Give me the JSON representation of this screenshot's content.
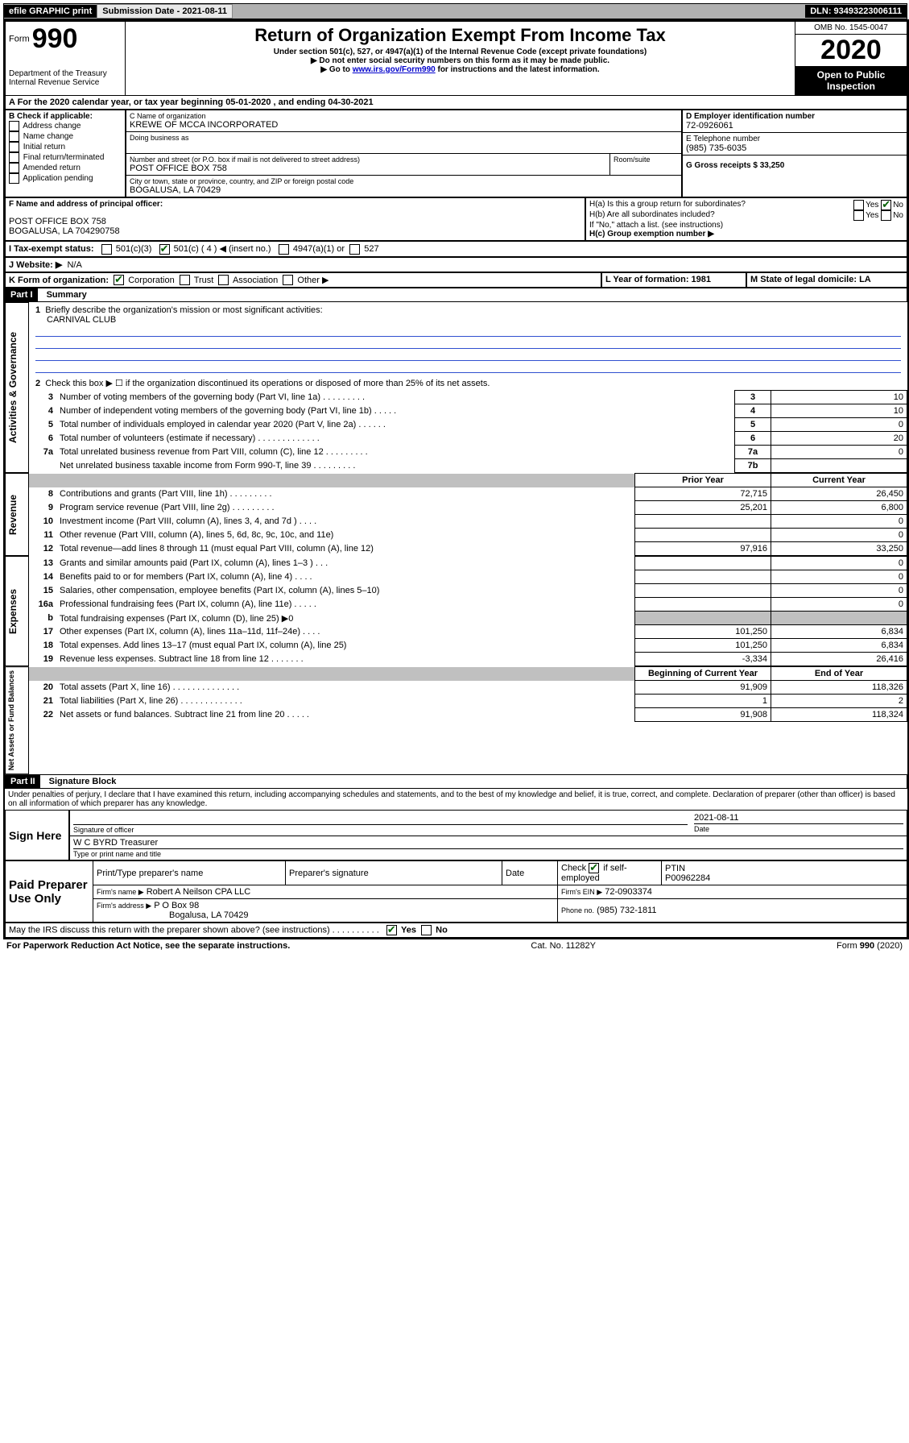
{
  "topbar": {
    "efile": "efile GRAPHIC print",
    "submission_label": "Submission Date - 2021-08-11",
    "dln_label": "DLN: 93493223006111"
  },
  "header": {
    "form_label": "Form",
    "form_number": "990",
    "dept1": "Department of the Treasury",
    "dept2": "Internal Revenue Service",
    "title": "Return of Organization Exempt From Income Tax",
    "subtitle": "Under section 501(c), 527, or 4947(a)(1) of the Internal Revenue Code (except private foundations)",
    "note1": "▶ Do not enter social security numbers on this form as it may be made public.",
    "note2_pre": "▶ Go to ",
    "note2_link": "www.irs.gov/Form990",
    "note2_post": " for instructions and the latest information.",
    "omb": "OMB No. 1545-0047",
    "year": "2020",
    "open": "Open to Public Inspection"
  },
  "periodA": "A For the 2020 calendar year, or tax year beginning 05-01-2020    , and ending 04-30-2021",
  "sectionB": {
    "label": "B Check if applicable:",
    "opts": [
      "Address change",
      "Name change",
      "Initial return",
      "Final return/terminated",
      "Amended return",
      "Application pending"
    ]
  },
  "sectionC": {
    "name_label": "C Name of organization",
    "name": "KREWE OF MCCA INCORPORATED",
    "dba_label": "Doing business as",
    "addr_label": "Number and street (or P.O. box if mail is not delivered to street address)",
    "room_label": "Room/suite",
    "addr": "POST OFFICE BOX 758",
    "city_label": "City or town, state or province, country, and ZIP or foreign postal code",
    "city": "BOGALUSA, LA  70429"
  },
  "sectionD": {
    "label": "D Employer identification number",
    "value": "72-0926061"
  },
  "sectionE": {
    "label": "E Telephone number",
    "value": "(985) 735-6035"
  },
  "sectionG": {
    "label": "G Gross receipts $ 33,250"
  },
  "sectionF": {
    "label": "F  Name and address of principal officer:",
    "line1": "POST OFFICE BOX 758",
    "line2": "BOGALUSA, LA  704290758"
  },
  "sectionH": {
    "a": "H(a)  Is this a group return for subordinates?",
    "b": "H(b)  Are all subordinates included?",
    "note": "If \"No,\" attach a list. (see instructions)",
    "c": "H(c)  Group exemption number ▶",
    "yes": "Yes",
    "no": "No"
  },
  "sectionI": {
    "label": "I   Tax-exempt status:",
    "o1": "501(c)(3)",
    "o2": "501(c) ( 4 ) ◀ (insert no.)",
    "o3": "4947(a)(1) or",
    "o4": "527"
  },
  "sectionJ": {
    "label": "J   Website: ▶",
    "value": "N/A"
  },
  "sectionK": {
    "label": "K Form of organization:",
    "o1": "Corporation",
    "o2": "Trust",
    "o3": "Association",
    "o4": "Other ▶"
  },
  "sectionL": {
    "label": "L Year of formation: 1981"
  },
  "sectionM": {
    "label": "M State of legal domicile: LA"
  },
  "part1": {
    "header": "Part I",
    "title": "Summary",
    "l1_label": "Briefly describe the organization's mission or most significant activities:",
    "l1_value": "CARNIVAL CLUB",
    "l2": "Check this box ▶ ☐  if the organization discontinued its operations or disposed of more than 25% of its net assets.",
    "lines_top": [
      {
        "n": "3",
        "t": "Number of voting members of the governing body (Part VI, line 1a)   .    .    .    .    .    .    .    .    .",
        "box": "3",
        "v": "10"
      },
      {
        "n": "4",
        "t": "Number of independent voting members of the governing body (Part VI, line 1b)   .    .    .    .    .",
        "box": "4",
        "v": "10"
      },
      {
        "n": "5",
        "t": "Total number of individuals employed in calendar year 2020 (Part V, line 2a)   .    .    .    .    .    .",
        "box": "5",
        "v": "0"
      },
      {
        "n": "6",
        "t": "Total number of volunteers (estimate if necessary)   .    .    .    .    .    .    .    .    .    .    .    .    .",
        "box": "6",
        "v": "20"
      },
      {
        "n": "7a",
        "t": "Total unrelated business revenue from Part VIII, column (C), line 12   .    .    .    .    .    .    .    .    .",
        "box": "7a",
        "v": "0"
      },
      {
        "n": "",
        "t": "Net unrelated business taxable income from Form 990-T, line 39   .    .    .    .    .    .    .    .    .",
        "box": "7b",
        "v": ""
      }
    ],
    "col_prior": "Prior Year",
    "col_current": "Current Year",
    "col_boy": "Beginning of Current Year",
    "col_eoy": "End of Year",
    "rev": [
      {
        "n": "8",
        "t": "Contributions and grants (Part VIII, line 1h)   .    .    .    .    .    .    .    .    .",
        "p": "72,715",
        "c": "26,450"
      },
      {
        "n": "9",
        "t": "Program service revenue (Part VIII, line 2g)   .    .    .    .    .    .    .    .    .",
        "p": "25,201",
        "c": "6,800"
      },
      {
        "n": "10",
        "t": "Investment income (Part VIII, column (A), lines 3, 4, and 7d )   .    .    .    .",
        "p": "",
        "c": "0"
      },
      {
        "n": "11",
        "t": "Other revenue (Part VIII, column (A), lines 5, 6d, 8c, 9c, 10c, and 11e)",
        "p": "",
        "c": "0"
      },
      {
        "n": "12",
        "t": "Total revenue—add lines 8 through 11 (must equal Part VIII, column (A), line 12)",
        "p": "97,916",
        "c": "33,250"
      }
    ],
    "exp": [
      {
        "n": "13",
        "t": "Grants and similar amounts paid (Part IX, column (A), lines 1–3 )   .    .    .",
        "p": "",
        "c": "0"
      },
      {
        "n": "14",
        "t": "Benefits paid to or for members (Part IX, column (A), line 4)   .    .    .    .",
        "p": "",
        "c": "0"
      },
      {
        "n": "15",
        "t": "Salaries, other compensation, employee benefits (Part IX, column (A), lines 5–10)",
        "p": "",
        "c": "0"
      },
      {
        "n": "16a",
        "t": "Professional fundraising fees (Part IX, column (A), line 11e)   .    .    .    .    .",
        "p": "",
        "c": "0"
      },
      {
        "n": "b",
        "t": "Total fundraising expenses (Part IX, column (D), line 25) ▶0",
        "p": "__shade__",
        "c": "__shade__"
      },
      {
        "n": "17",
        "t": "Other expenses (Part IX, column (A), lines 11a–11d, 11f–24e)   .    .    .    .",
        "p": "101,250",
        "c": "6,834"
      },
      {
        "n": "18",
        "t": "Total expenses. Add lines 13–17 (must equal Part IX, column (A), line 25)",
        "p": "101,250",
        "c": "6,834"
      },
      {
        "n": "19",
        "t": "Revenue less expenses. Subtract line 18 from line 12   .    .    .    .    .    .    .",
        "p": "-3,334",
        "c": "26,416"
      }
    ],
    "net": [
      {
        "n": "20",
        "t": "Total assets (Part X, line 16)   .    .    .    .    .    .    .    .    .    .    .    .    .    .",
        "p": "91,909",
        "c": "118,326"
      },
      {
        "n": "21",
        "t": "Total liabilities (Part X, line 26)   .    .    .    .    .    .    .    .    .    .    .    .    .",
        "p": "1",
        "c": "2"
      },
      {
        "n": "22",
        "t": "Net assets or fund balances. Subtract line 21 from line 20   .    .    .    .    .",
        "p": "91,908",
        "c": "118,324"
      }
    ],
    "side_gov": "Activities & Governance",
    "side_rev": "Revenue",
    "side_exp": "Expenses",
    "side_net": "Net Assets or Fund Balances"
  },
  "part2": {
    "header": "Part II",
    "title": "Signature Block",
    "perjury": "Under penalties of perjury, I declare that I have examined this return, including accompanying schedules and statements, and to the best of my knowledge and belief, it is true, correct, and complete. Declaration of preparer (other than officer) is based on all information of which preparer has any knowledge.",
    "sign_here": "Sign Here",
    "sig_officer": "Signature of officer",
    "sig_date": "2021-08-11",
    "date_label": "Date",
    "officer_name": "W C BYRD  Treasurer",
    "type_name": "Type or print name and title",
    "paid": "Paid Preparer Use Only",
    "col_print": "Print/Type preparer's name",
    "col_sig": "Preparer's signature",
    "col_date": "Date",
    "check_self": "Check ☑ if self-employed",
    "ptin_label": "PTIN",
    "ptin": "P00962284",
    "firm_name_label": "Firm's name    ▶",
    "firm_name": "Robert A Neilson CPA LLC",
    "firm_ein_label": "Firm's EIN ▶",
    "firm_ein": "72-0903374",
    "firm_addr_label": "Firm's address ▶",
    "firm_addr1": "P O Box 98",
    "firm_addr2": "Bogalusa, LA  70429",
    "phone_label": "Phone no.",
    "phone": "(985) 732-1811",
    "discuss": "May the IRS discuss this return with the preparer shown above? (see instructions)   .    .    .    .    .    .    .    .    .    .",
    "yes": "Yes",
    "no": "No"
  },
  "footer": {
    "paperwork": "For Paperwork Reduction Act Notice, see the separate instructions.",
    "cat": "Cat. No. 11282Y",
    "form": "Form 990 (2020)"
  }
}
